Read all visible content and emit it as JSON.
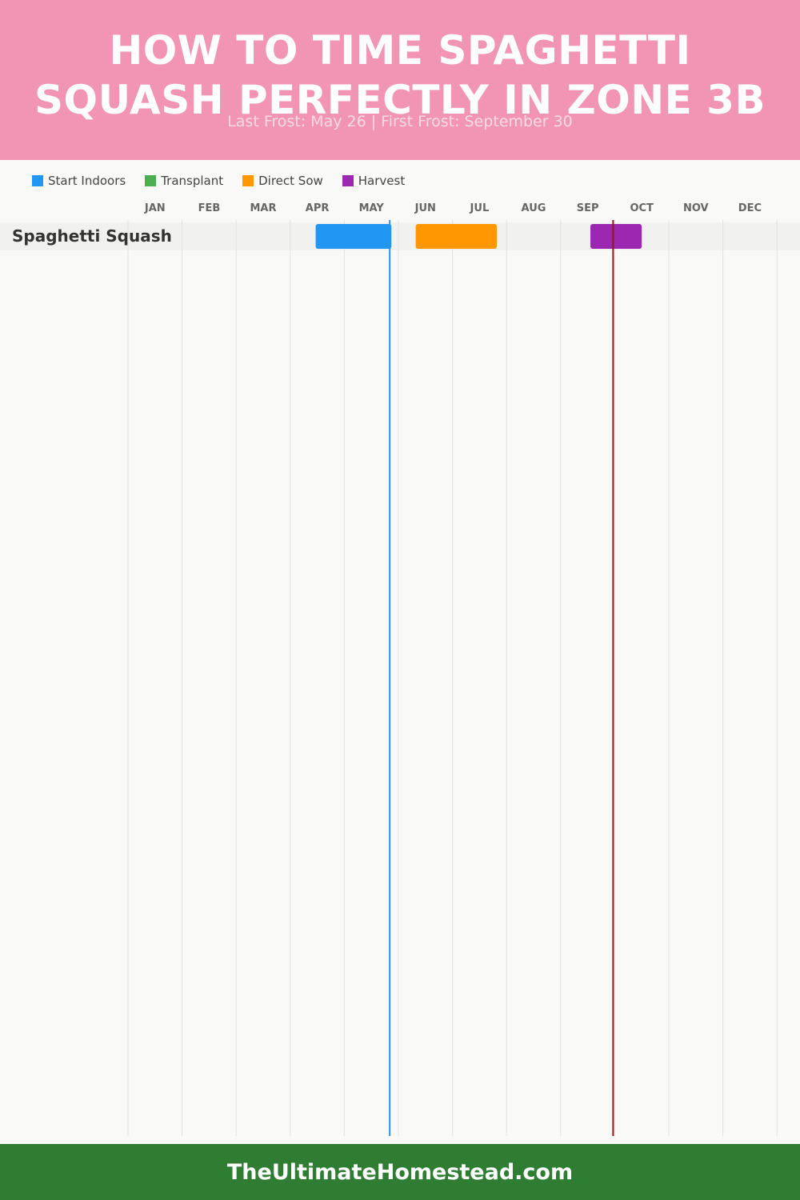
{
  "header": {
    "title_line1": "How to Time Spaghetti",
    "title_line2": "Squash Perfectly in Zone 3B",
    "subtitle": "Last Frost: May 26 | First Frost: September 30",
    "background_color": "#f295b5"
  },
  "legend": {
    "items": [
      {
        "label": "Start Indoors",
        "color": "#2196f3"
      },
      {
        "label": "Transplant",
        "color": "#4caf50"
      },
      {
        "label": "Direct Sow",
        "color": "#ff9800"
      },
      {
        "label": "Harvest",
        "color": "#9c27b0"
      }
    ]
  },
  "chart_data": {
    "type": "gantt",
    "x_unit": "month of year (1 = start of January, 13 = end of December)",
    "months": [
      "JAN",
      "FEB",
      "MAR",
      "APR",
      "MAY",
      "JUN",
      "JUL",
      "AUG",
      "SEP",
      "OCT",
      "NOV",
      "DEC"
    ],
    "rows": [
      {
        "name": "Spaghetti Squash",
        "bars": [
          {
            "stage": "Start Indoors",
            "start": 4.47,
            "end": 5.87,
            "color": "#2196f3"
          },
          {
            "stage": "Direct Sow",
            "start": 6.32,
            "end": 7.82,
            "color": "#ff9800"
          },
          {
            "stage": "Harvest",
            "start": 9.55,
            "end": 10.5,
            "color": "#9c27b0"
          }
        ]
      }
    ],
    "markers": [
      {
        "name": "Last Frost",
        "value": 5.84,
        "color": "#2196f3"
      },
      {
        "name": "First Frost",
        "value": 9.97,
        "color": "#8b1a1a"
      }
    ],
    "grid": true
  },
  "footer": {
    "text": "TheUltimateHomestead.com",
    "background_color": "#2e7d32"
  }
}
